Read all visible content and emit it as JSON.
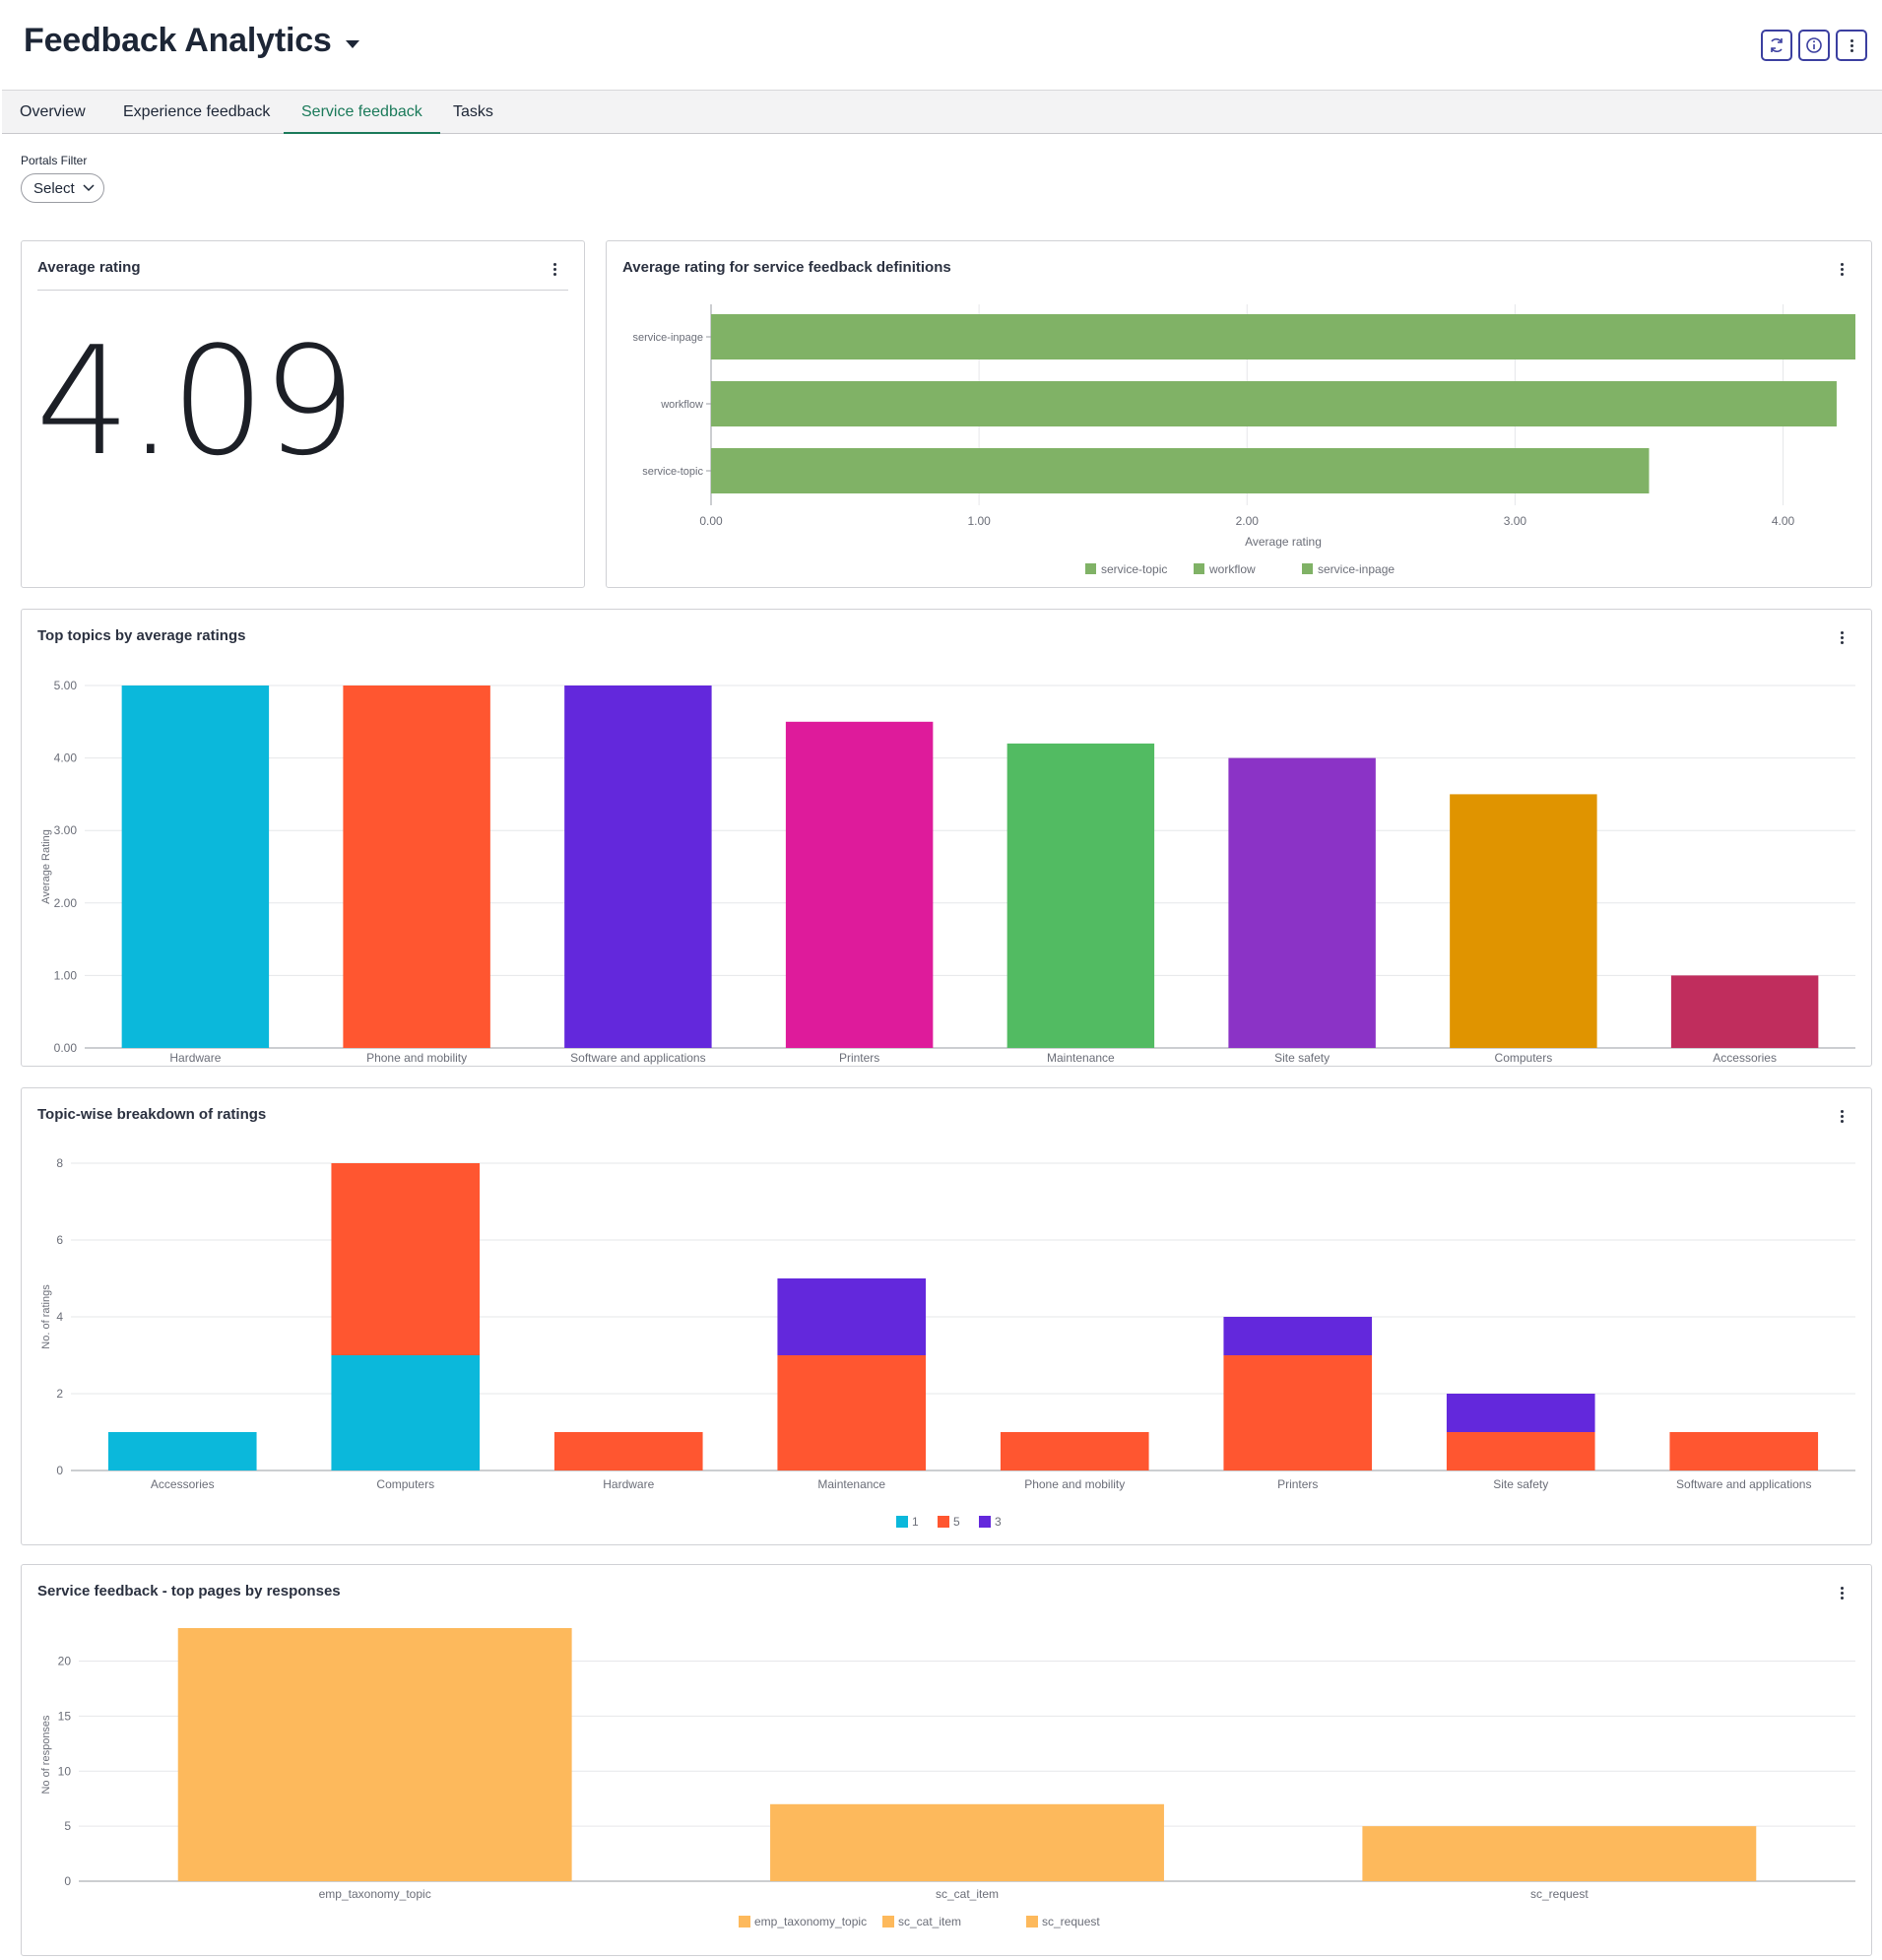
{
  "header": {
    "title": "Feedback Analytics"
  },
  "tabs": [
    {
      "label": "Overview"
    },
    {
      "label": "Experience feedback"
    },
    {
      "label": "Service feedback"
    },
    {
      "label": "Tasks"
    }
  ],
  "filter": {
    "label": "Portals Filter",
    "value": "Select"
  },
  "avg_card": {
    "title": "Average rating",
    "value": "4.09"
  },
  "def_card": {
    "title": "Average rating for service feedback definitions"
  },
  "topics_card": {
    "title": "Top topics by average ratings"
  },
  "breakdown_card": {
    "title": "Topic-wise breakdown of ratings"
  },
  "pages_card": {
    "title": "Service feedback - top pages by responses"
  },
  "chart_data": [
    {
      "id": "definitions",
      "type": "bar",
      "orientation": "horizontal",
      "categories": [
        "service-inpage",
        "workflow",
        "service-topic"
      ],
      "values": [
        4.27,
        4.2,
        3.5
      ],
      "color": "#80b266",
      "xlabel": "Average rating",
      "xlim": [
        0,
        4.27
      ],
      "ticks": [
        "0.00",
        "1.00",
        "2.00",
        "3.00",
        "4.00"
      ],
      "legend": [
        "service-topic",
        "workflow",
        "service-inpage"
      ],
      "legend_position": "bottom"
    },
    {
      "id": "topics",
      "type": "bar",
      "categories": [
        "Hardware",
        "Phone and mobility",
        "Software and applications",
        "Printers",
        "Maintenance",
        "Site safety",
        "Computers",
        "Accessories"
      ],
      "values": [
        5.0,
        5.0,
        5.0,
        4.5,
        4.2,
        4.0,
        3.5,
        1.0
      ],
      "colors": [
        "#0bb8db",
        "#ff5630",
        "#6328dc",
        "#de1b9b",
        "#52bb62",
        "#8b33c6",
        "#e09400",
        "#c02d5d"
      ],
      "ylabel": "Average Rating",
      "ylim": [
        0,
        5
      ],
      "ticks": [
        "0.00",
        "1.00",
        "2.00",
        "3.00",
        "4.00",
        "5.00"
      ],
      "grid": true
    },
    {
      "id": "breakdown",
      "type": "bar",
      "stacked": true,
      "categories": [
        "Accessories",
        "Computers",
        "Hardware",
        "Maintenance",
        "Phone and mobility",
        "Printers",
        "Site safety",
        "Software and applications"
      ],
      "series": [
        {
          "name": "1",
          "color": "#0bb8db",
          "values": [
            1,
            3,
            0,
            0,
            0,
            0,
            0,
            0
          ]
        },
        {
          "name": "5",
          "color": "#ff5630",
          "values": [
            0,
            5,
            1,
            3,
            1,
            3,
            1,
            1
          ]
        },
        {
          "name": "3",
          "color": "#6328dc",
          "values": [
            0,
            0,
            0,
            2,
            0,
            1,
            1,
            0
          ]
        }
      ],
      "ylabel": "No. of ratings",
      "ylim": [
        0,
        8
      ],
      "ticks": [
        "0",
        "2",
        "4",
        "6",
        "8"
      ],
      "legend_position": "bottom",
      "grid": true
    },
    {
      "id": "pages",
      "type": "bar",
      "categories": [
        "emp_taxonomy_topic",
        "sc_cat_item",
        "sc_request"
      ],
      "values": [
        23,
        7,
        5
      ],
      "color": "#fdb95c",
      "ylabel": "No of responses",
      "ylim": [
        0,
        23
      ],
      "ticks": [
        "0",
        "5",
        "10",
        "15",
        "20"
      ],
      "legend": [
        "emp_taxonomy_topic",
        "sc_cat_item",
        "sc_request"
      ],
      "legend_position": "bottom",
      "grid": true
    }
  ]
}
